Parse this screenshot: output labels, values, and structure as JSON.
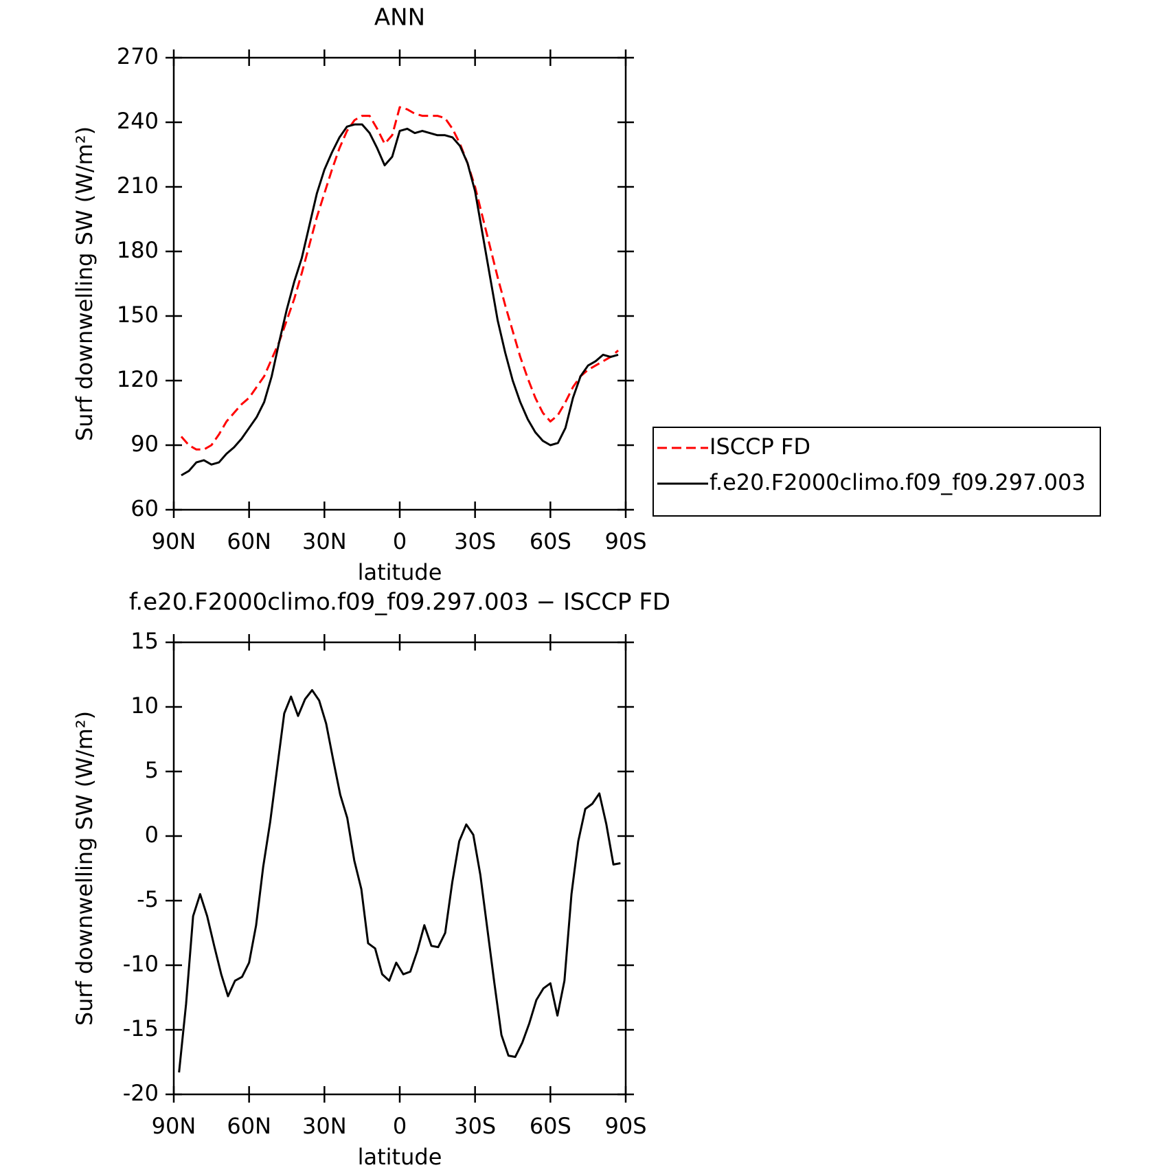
{
  "chart_data": [
    {
      "type": "line",
      "title": "ANN",
      "xlabel": "latitude",
      "ylabel": "Surf downwelling SW (W/m²)",
      "x": [
        87,
        84,
        81,
        78,
        75,
        72,
        69,
        66,
        63,
        60,
        57,
        54,
        51,
        48,
        45,
        42,
        39,
        36,
        33,
        30,
        27,
        24,
        21,
        18,
        15,
        12,
        9,
        6,
        3,
        0,
        -3,
        -6,
        -9,
        -12,
        -15,
        -18,
        -21,
        -24,
        -27,
        -30,
        -33,
        -36,
        -39,
        -42,
        -45,
        -48,
        -51,
        -54,
        -57,
        -60,
        -63,
        -66,
        -69,
        -72,
        -75,
        -78,
        -81,
        -84,
        -87
      ],
      "series": [
        {
          "name": "ISCCP FD",
          "color": "#ff0000",
          "linestyle": "dashed",
          "values": [
            94,
            90,
            88,
            88,
            90,
            95,
            101,
            105,
            109,
            112,
            117,
            122,
            130,
            138,
            148,
            158,
            170,
            183,
            196,
            207,
            218,
            228,
            236,
            241,
            243,
            243,
            237,
            230,
            234,
            247,
            246,
            244,
            243,
            243,
            243,
            242,
            237,
            230,
            221,
            210,
            196,
            182,
            168,
            155,
            143,
            131,
            121,
            112,
            105,
            101,
            104,
            110,
            117,
            122,
            125,
            127,
            129,
            131,
            134
          ]
        },
        {
          "name": "f.e20.F2000climo.f09_f09.297.003",
          "color": "#000000",
          "linestyle": "solid",
          "values": [
            76,
            78,
            82,
            83,
            81,
            82,
            86,
            89,
            93,
            98,
            103,
            110,
            122,
            138,
            153,
            166,
            177,
            192,
            207,
            218,
            226,
            233,
            238,
            239,
            239,
            235,
            228,
            220,
            224,
            236,
            237,
            235,
            236,
            235,
            234,
            234,
            233,
            229,
            221,
            208,
            188,
            168,
            148,
            133,
            120,
            110,
            102,
            96,
            92,
            90,
            91,
            98,
            112,
            122,
            127,
            129,
            132,
            131,
            132
          ]
        }
      ],
      "xlim": [
        90,
        -90
      ],
      "xticks": [
        {
          "value": 90,
          "label": "90N"
        },
        {
          "value": 60,
          "label": "60N"
        },
        {
          "value": 30,
          "label": "30N"
        },
        0,
        {
          "value": -30,
          "label": "30S"
        },
        {
          "value": -60,
          "label": "60S"
        },
        {
          "value": -90,
          "label": "90S"
        }
      ],
      "ylim": [
        60,
        270
      ],
      "yticks": [
        60,
        90,
        120,
        150,
        180,
        210,
        240,
        270
      ],
      "legend": "right"
    },
    {
      "type": "line",
      "title": "f.e20.F2000climo.f09_f09.297.003 − ISCCP FD",
      "xlabel": "latitude",
      "ylabel": "Surf downwelling SW (W/m²)",
      "x": [
        87.9,
        85.1,
        82.3,
        79.5,
        76.7,
        73.9,
        71.1,
        68.4,
        65.6,
        62.8,
        60.0,
        57.2,
        54.4,
        51.6,
        48.8,
        46.0,
        43.3,
        40.5,
        37.7,
        34.9,
        32.1,
        29.3,
        26.5,
        23.7,
        20.9,
        18.1,
        15.3,
        12.6,
        9.8,
        7.0,
        4.2,
        1.4,
        -1.4,
        -4.2,
        -7.0,
        -9.8,
        -12.6,
        -15.3,
        -18.1,
        -20.9,
        -23.7,
        -26.5,
        -29.3,
        -32.1,
        -34.9,
        -37.7,
        -40.5,
        -43.3,
        -46.0,
        -48.8,
        -51.6,
        -54.4,
        -57.2,
        -60.0,
        -62.8,
        -65.6,
        -68.4,
        -71.1,
        -73.9,
        -76.7,
        -79.5,
        -82.3,
        -85.1,
        -87.9
      ],
      "values": [
        -18.3,
        -13,
        -6.2,
        -4.5,
        -6.2,
        -8.5,
        -10.7,
        -12.4,
        -11.2,
        -10.9,
        -9.8,
        -6.9,
        -2.4,
        1.1,
        5.3,
        9.5,
        10.8,
        9.3,
        10.6,
        11.3,
        10.5,
        8.7,
        5.9,
        3.2,
        1.4,
        -1.9,
        -4.1,
        -8.3,
        -8.7,
        -10.7,
        -11.2,
        -9.8,
        -10.7,
        -10.5,
        -8.9,
        -6.9,
        -8.5,
        -8.6,
        -7.5,
        -3.6,
        -0.4,
        0.9,
        0.1,
        -3.0,
        -7.2,
        -11.4,
        -15.4,
        -17.0,
        -17.1,
        -16.0,
        -14.5,
        -12.7,
        -11.8,
        -11.4,
        -13.9,
        -11.2,
        -4.5,
        -0.4,
        2.1,
        2.5,
        3.3,
        0.9,
        -2.2,
        -2.1
      ],
      "color": "#000000",
      "xlim": [
        90,
        -90
      ],
      "xticks": [
        {
          "value": 90,
          "label": "90N"
        },
        {
          "value": 60,
          "label": "60N"
        },
        {
          "value": 30,
          "label": "30N"
        },
        0,
        {
          "value": -30,
          "label": "30S"
        },
        {
          "value": -60,
          "label": "60S"
        },
        {
          "value": -90,
          "label": "90S"
        }
      ],
      "ylim": [
        -20,
        15
      ],
      "yticks": [
        -20,
        -15,
        -10,
        -5,
        0,
        5,
        10,
        15
      ]
    }
  ]
}
